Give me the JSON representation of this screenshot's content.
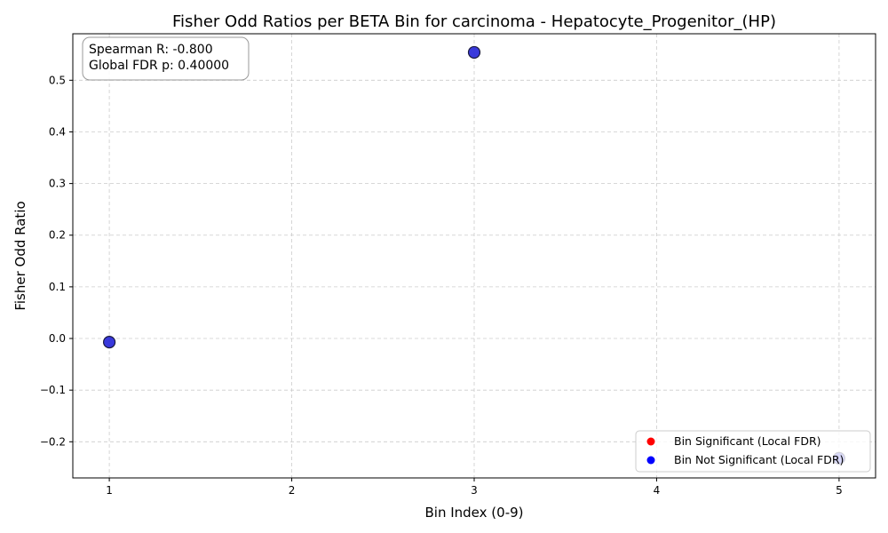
{
  "colors": {
    "significant": "#ff0000",
    "not_significant": "#0000ff",
    "point_fill": "#2323d8",
    "grid": "#cccccc"
  },
  "stats": {
    "spearman": "Spearman R: -0.800",
    "global_fdr": "Global FDR p: 0.40000"
  },
  "chart_data": {
    "type": "scatter",
    "title": "Fisher Odd Ratios per BETA Bin for carcinoma - Hepatocyte_Progenitor_(HP)",
    "xlabel": "Bin Index (0-9)",
    "ylabel": "Fisher Odd Ratio",
    "xlim": [
      0.8,
      5.2
    ],
    "ylim": [
      -0.27,
      0.59
    ],
    "xticks": [
      1,
      2,
      3,
      4,
      5
    ],
    "xtick_labels": [
      "1",
      "2",
      "3",
      "4",
      "5"
    ],
    "yticks": [
      -0.2,
      -0.1,
      0.0,
      0.1,
      0.2,
      0.3,
      0.4,
      0.5
    ],
    "ytick_labels": [
      "−0.2",
      "−0.1",
      "0.0",
      "0.1",
      "0.2",
      "0.3",
      "0.4",
      "0.5"
    ],
    "grid": true,
    "legend_position": "lower-right",
    "legend": [
      "Bin Significant (Local FDR)",
      "Bin Not Significant (Local FDR)"
    ],
    "points": [
      {
        "x": 1,
        "y": -0.007,
        "significant": false
      },
      {
        "x": 3,
        "y": 0.554,
        "significant": false
      },
      {
        "x": 5,
        "y": -0.232,
        "significant": false
      }
    ]
  }
}
